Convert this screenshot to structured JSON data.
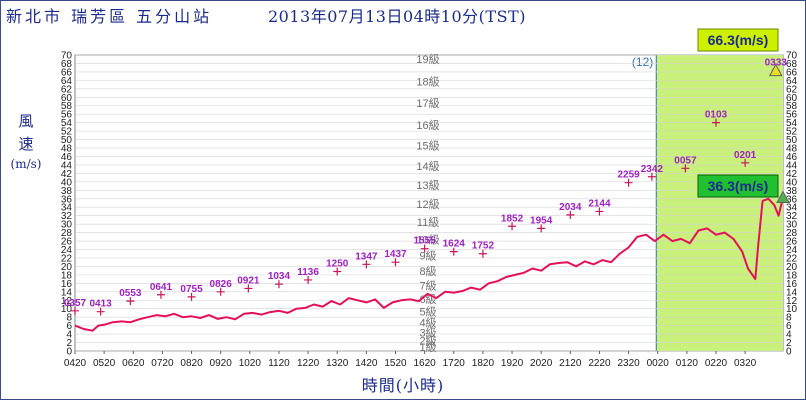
{
  "header": {
    "station": "新北市 瑞芳區 五分山站",
    "timestamp": "2013年07月13日04時10分(TST)"
  },
  "y_axis_title": {
    "line1": "風",
    "line2": "速",
    "unit": "(m/s)"
  },
  "x_axis_title": "時間(小時)",
  "colors": {
    "frame": "#3a4a8a",
    "title_text": "#1b2a8e",
    "gust_marker": "#c8165a",
    "gust_label": "#a020c8",
    "wind_line": "#e5105a",
    "highlight_fill": "#c8f07a",
    "badge_fill": "#ccf000",
    "divider": "#3070c0",
    "warning_triangle": "#e8e020"
  },
  "chart_data": {
    "type": "line",
    "ylim": [
      0,
      70
    ],
    "y_ticks": [
      0,
      2,
      4,
      6,
      8,
      10,
      12,
      14,
      16,
      18,
      20,
      22,
      24,
      26,
      28,
      30,
      32,
      34,
      36,
      38,
      40,
      42,
      44,
      46,
      48,
      50,
      52,
      54,
      56,
      58,
      60,
      62,
      64,
      66,
      68,
      70
    ],
    "x_tick_labels": [
      "0420",
      "0520",
      "0620",
      "0720",
      "0820",
      "0920",
      "1020",
      "1120",
      "1220",
      "1320",
      "1420",
      "1520",
      "1620",
      "1720",
      "1820",
      "1920",
      "2020",
      "2120",
      "2220",
      "2320",
      "0020",
      "0120",
      "0220",
      "0320"
    ],
    "x_range_hours": [
      0,
      24.3
    ],
    "beaufort_levels": [
      {
        "label": "1級",
        "value": 0.9
      },
      {
        "label": "2級",
        "value": 2.5
      },
      {
        "label": "3級",
        "value": 4.4
      },
      {
        "label": "4級",
        "value": 6.7
      },
      {
        "label": "5級",
        "value": 9.4
      },
      {
        "label": "6級",
        "value": 12.3
      },
      {
        "label": "7級",
        "value": 15.5
      },
      {
        "label": "8級",
        "value": 18.9
      },
      {
        "label": "9級",
        "value": 22.6
      },
      {
        "label": "10級",
        "value": 26.4
      },
      {
        "label": "11級",
        "value": 30.5
      },
      {
        "label": "12級",
        "value": 34.8
      },
      {
        "label": "13級",
        "value": 39.2
      },
      {
        "label": "14級",
        "value": 43.8
      },
      {
        "label": "15級",
        "value": 48.6
      },
      {
        "label": "16級",
        "value": 53.5
      },
      {
        "label": "17級",
        "value": 58.6
      },
      {
        "label": "18級",
        "value": 63.7
      },
      {
        "label": "19級",
        "value": 69.0
      }
    ],
    "highlight_region": {
      "start": 19.95,
      "end": 24.3,
      "marker_label": "(12)"
    },
    "gust_series": [
      {
        "label": "0357",
        "x": 0.0,
        "y": 9.5
      },
      {
        "label": "0413",
        "x": 0.88,
        "y": 9.3
      },
      {
        "label": "0553",
        "x": 1.9,
        "y": 11.8
      },
      {
        "label": "0641",
        "x": 2.95,
        "y": 13.3
      },
      {
        "label": "0755",
        "x": 4.0,
        "y": 12.8
      },
      {
        "label": "0826",
        "x": 5.0,
        "y": 14.0
      },
      {
        "label": "0921",
        "x": 5.95,
        "y": 14.8
      },
      {
        "label": "1034",
        "x": 7.0,
        "y": 15.8
      },
      {
        "label": "1136",
        "x": 8.0,
        "y": 16.8
      },
      {
        "label": "1250",
        "x": 9.0,
        "y": 18.8
      },
      {
        "label": "1347",
        "x": 10.0,
        "y": 20.5
      },
      {
        "label": "1437",
        "x": 11.0,
        "y": 21.0
      },
      {
        "label": "1555",
        "x": 12.0,
        "y": 24.2
      },
      {
        "label": "1624",
        "x": 13.0,
        "y": 23.5
      },
      {
        "label": "1752",
        "x": 14.0,
        "y": 23.0
      },
      {
        "label": "1852",
        "x": 15.0,
        "y": 29.5
      },
      {
        "label": "1954",
        "x": 16.0,
        "y": 29.0
      },
      {
        "label": "2034",
        "x": 17.0,
        "y": 32.2
      },
      {
        "label": "2144",
        "x": 18.0,
        "y": 33.0
      },
      {
        "label": "2259",
        "x": 19.0,
        "y": 39.8
      },
      {
        "label": "2342",
        "x": 19.8,
        "y": 41.2
      },
      {
        "label": "0057",
        "x": 20.95,
        "y": 43.2
      },
      {
        "label": "0103",
        "x": 22.0,
        "y": 54.0
      },
      {
        "label": "0201",
        "x": 23.0,
        "y": 44.5
      },
      {
        "label": "0333",
        "x": 24.05,
        "y": 66.3
      }
    ],
    "wind_series": [
      [
        0.0,
        6.0
      ],
      [
        0.3,
        5.2
      ],
      [
        0.6,
        4.8
      ],
      [
        0.8,
        6.0
      ],
      [
        1.0,
        6.2
      ],
      [
        1.3,
        6.8
      ],
      [
        1.6,
        7.0
      ],
      [
        1.9,
        6.8
      ],
      [
        2.2,
        7.5
      ],
      [
        2.5,
        8.0
      ],
      [
        2.8,
        8.5
      ],
      [
        3.1,
        8.2
      ],
      [
        3.4,
        8.8
      ],
      [
        3.7,
        8.0
      ],
      [
        4.0,
        8.2
      ],
      [
        4.3,
        7.8
      ],
      [
        4.6,
        8.5
      ],
      [
        4.9,
        7.6
      ],
      [
        5.2,
        8.0
      ],
      [
        5.5,
        7.5
      ],
      [
        5.8,
        8.8
      ],
      [
        6.1,
        9.0
      ],
      [
        6.4,
        8.6
      ],
      [
        6.7,
        9.2
      ],
      [
        7.0,
        9.5
      ],
      [
        7.3,
        9.0
      ],
      [
        7.6,
        10.0
      ],
      [
        7.9,
        10.2
      ],
      [
        8.2,
        11.0
      ],
      [
        8.5,
        10.5
      ],
      [
        8.8,
        11.8
      ],
      [
        9.1,
        11.0
      ],
      [
        9.4,
        12.5
      ],
      [
        9.7,
        12.0
      ],
      [
        10.0,
        11.5
      ],
      [
        10.3,
        12.2
      ],
      [
        10.6,
        10.2
      ],
      [
        10.9,
        11.5
      ],
      [
        11.2,
        12.0
      ],
      [
        11.5,
        12.2
      ],
      [
        11.8,
        11.8
      ],
      [
        12.1,
        13.5
      ],
      [
        12.4,
        12.5
      ],
      [
        12.7,
        14.0
      ],
      [
        13.0,
        13.8
      ],
      [
        13.3,
        14.2
      ],
      [
        13.6,
        15.0
      ],
      [
        13.9,
        14.5
      ],
      [
        14.2,
        16.0
      ],
      [
        14.5,
        16.5
      ],
      [
        14.8,
        17.5
      ],
      [
        15.1,
        18.0
      ],
      [
        15.4,
        18.5
      ],
      [
        15.7,
        19.5
      ],
      [
        16.0,
        19.0
      ],
      [
        16.3,
        20.5
      ],
      [
        16.6,
        20.8
      ],
      [
        16.9,
        21.0
      ],
      [
        17.2,
        20.0
      ],
      [
        17.5,
        21.2
      ],
      [
        17.8,
        20.5
      ],
      [
        18.1,
        21.5
      ],
      [
        18.4,
        21.0
      ],
      [
        18.7,
        23.0
      ],
      [
        19.0,
        24.5
      ],
      [
        19.3,
        27.0
      ],
      [
        19.6,
        27.5
      ],
      [
        19.9,
        26.0
      ],
      [
        20.2,
        27.5
      ],
      [
        20.5,
        26.0
      ],
      [
        20.8,
        26.5
      ],
      [
        21.1,
        25.5
      ],
      [
        21.4,
        28.5
      ],
      [
        21.7,
        29.0
      ],
      [
        22.0,
        27.5
      ],
      [
        22.3,
        28.0
      ],
      [
        22.6,
        26.5
      ],
      [
        22.9,
        23.5
      ],
      [
        23.1,
        19.5
      ],
      [
        23.35,
        17.0
      ],
      [
        23.45,
        25.0
      ],
      [
        23.6,
        35.5
      ],
      [
        23.8,
        36.0
      ],
      [
        24.0,
        34.5
      ],
      [
        24.15,
        32.0
      ],
      [
        24.3,
        36.3
      ]
    ],
    "current_gust_badge": "66.3(m/s)",
    "current_wind_badge": "36.3(m/s)"
  }
}
